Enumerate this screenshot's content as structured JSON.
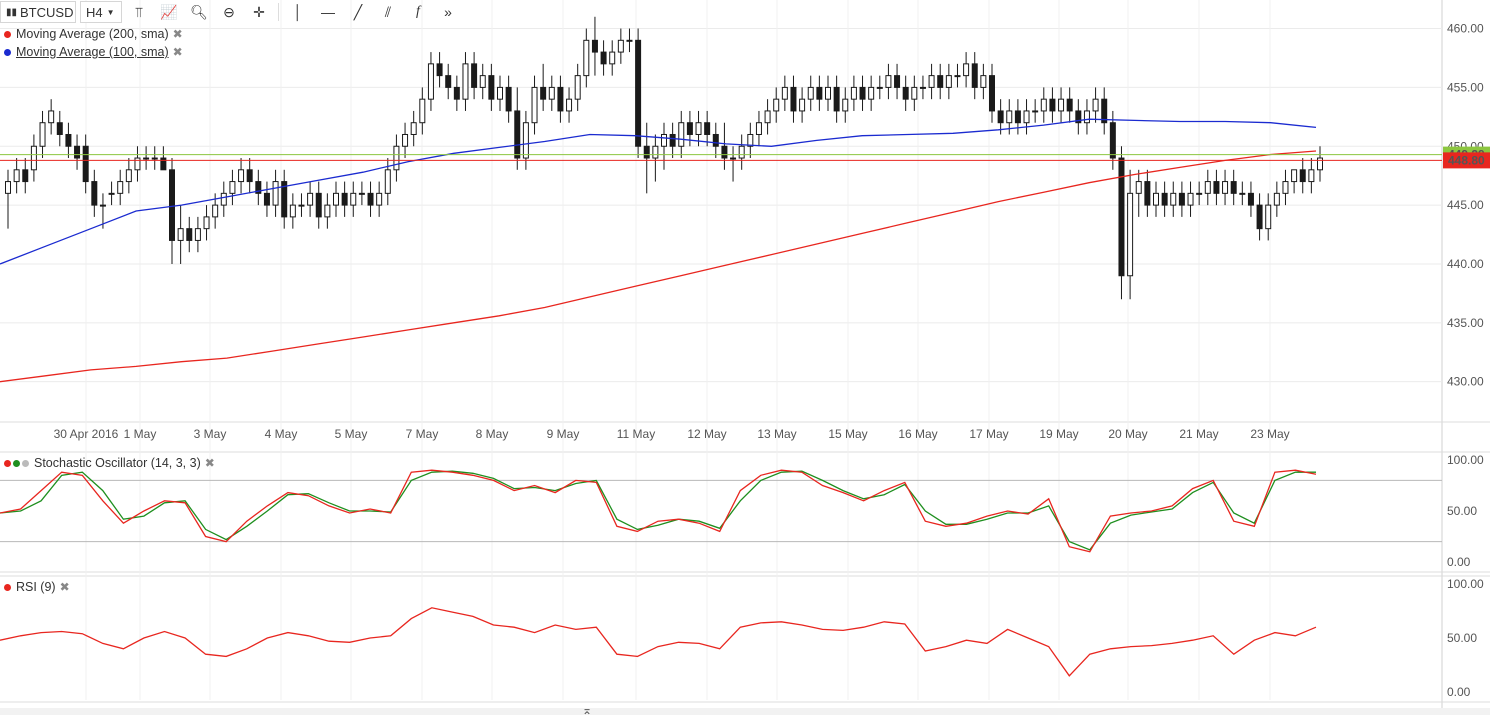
{
  "toolbar": {
    "symbol": "BTCUSD",
    "interval": "H4",
    "icons": [
      "bar-type-icon",
      "indicator-icon",
      "zoom-in-icon",
      "zoom-out-icon",
      "crosshair-icon",
      "vertical-line-icon",
      "horizontal-line-icon",
      "trend-line-icon",
      "fibonacci-icon",
      "function-icon",
      "forward-icon"
    ]
  },
  "legend": {
    "ma200": "Moving Average (200, sma)",
    "ma100": "Moving Average (100, sma)",
    "stoch": "Stochastic Oscillator (14, 3, 3)",
    "rsi": "RSI (9)"
  },
  "colors": {
    "ma200": "#e8261f",
    "ma100": "#1b2bd0",
    "stoch_k": "#e8261f",
    "stoch_d": "#1f8f1f",
    "rsi": "#e8261f",
    "price_line_green": "#8cc63f",
    "price_line_red": "#e8261f",
    "candle": "#1a1a1a",
    "grid": "#ebebeb"
  },
  "chart_data": [
    {
      "type": "candlestick",
      "title": "BTCUSD",
      "ylim": [
        427,
        462
      ],
      "yticks": [
        "460.00",
        "455.00",
        "450.00",
        "445.00",
        "440.00",
        "435.00",
        "430.00"
      ],
      "xticks": [
        "30 Apr 2016",
        "1 May",
        "3 May",
        "4 May",
        "5 May",
        "7 May",
        "8 May",
        "9 May",
        "11 May",
        "12 May",
        "13 May",
        "15 May",
        "16 May",
        "17 May",
        "19 May",
        "20 May",
        "21 May",
        "23 May"
      ],
      "price_markers": [
        {
          "label": "449.29",
          "value": 449.29,
          "color": "#8cc63f"
        },
        {
          "label": "448.80",
          "value": 448.8,
          "color": "#e8261f"
        }
      ],
      "candles": [
        [
          446,
          448,
          443,
          447
        ],
        [
          447,
          449,
          446,
          448
        ],
        [
          448,
          449,
          446,
          447
        ],
        [
          448,
          451,
          447,
          450
        ],
        [
          450,
          453,
          449,
          452
        ],
        [
          452,
          454,
          451,
          453
        ],
        [
          452,
          453,
          450,
          451
        ],
        [
          451,
          452,
          449,
          450
        ],
        [
          450,
          451,
          448,
          449
        ],
        [
          450,
          451,
          446,
          447
        ],
        [
          447,
          448,
          444,
          445
        ],
        [
          445,
          446,
          443,
          445
        ],
        [
          446,
          447,
          445,
          446
        ],
        [
          446,
          448,
          445,
          447
        ],
        [
          447,
          449,
          446,
          448
        ],
        [
          448,
          450,
          447,
          449
        ],
        [
          449,
          450,
          448,
          449
        ],
        [
          449,
          450,
          448,
          449
        ],
        [
          449,
          450,
          448,
          448
        ],
        [
          448,
          449,
          440,
          442
        ],
        [
          442,
          445,
          440,
          443
        ],
        [
          443,
          444,
          441,
          442
        ],
        [
          442,
          444,
          441,
          443
        ],
        [
          443,
          445,
          442,
          444
        ],
        [
          444,
          446,
          443,
          445
        ],
        [
          445,
          447,
          444,
          446
        ],
        [
          446,
          448,
          445,
          447
        ],
        [
          447,
          449,
          446,
          448
        ],
        [
          448,
          449,
          446,
          447
        ],
        [
          447,
          448,
          445,
          446
        ],
        [
          446,
          447,
          444,
          445
        ],
        [
          445,
          448,
          444,
          447
        ],
        [
          447,
          448,
          443,
          444
        ],
        [
          444,
          446,
          443,
          445
        ],
        [
          445,
          446,
          444,
          445
        ],
        [
          445,
          447,
          444,
          446
        ],
        [
          446,
          447,
          443,
          444
        ],
        [
          444,
          446,
          443,
          445
        ],
        [
          445,
          447,
          444,
          446
        ],
        [
          446,
          447,
          444,
          445
        ],
        [
          445,
          447,
          444,
          446
        ],
        [
          446,
          447,
          445,
          446
        ],
        [
          446,
          447,
          444,
          445
        ],
        [
          445,
          447,
          444,
          446
        ],
        [
          446,
          449,
          445,
          448
        ],
        [
          448,
          451,
          447,
          450
        ],
        [
          450,
          452,
          449,
          451
        ],
        [
          451,
          453,
          450,
          452
        ],
        [
          452,
          455,
          451,
          454
        ],
        [
          454,
          458,
          453,
          457
        ],
        [
          457,
          458,
          455,
          456
        ],
        [
          456,
          457,
          454,
          455
        ],
        [
          455,
          456,
          453,
          454
        ],
        [
          454,
          458,
          453,
          457
        ],
        [
          457,
          458,
          454,
          455
        ],
        [
          455,
          457,
          454,
          456
        ],
        [
          456,
          457,
          453,
          454
        ],
        [
          454,
          456,
          453,
          455
        ],
        [
          455,
          456,
          452,
          453
        ],
        [
          453,
          455,
          448,
          449
        ],
        [
          449,
          453,
          448,
          452
        ],
        [
          452,
          456,
          451,
          455
        ],
        [
          455,
          457,
          453,
          454
        ],
        [
          454,
          456,
          453,
          455
        ],
        [
          455,
          456,
          452,
          453
        ],
        [
          453,
          455,
          452,
          454
        ],
        [
          454,
          457,
          453,
          456
        ],
        [
          456,
          460,
          455,
          459
        ],
        [
          459,
          461,
          456,
          458
        ],
        [
          458,
          459,
          456,
          457
        ],
        [
          457,
          459,
          456,
          458
        ],
        [
          458,
          460,
          457,
          459
        ],
        [
          459,
          460,
          458,
          459
        ],
        [
          459,
          460,
          449,
          450
        ],
        [
          450,
          452,
          446,
          449
        ],
        [
          449,
          451,
          447,
          450
        ],
        [
          450,
          452,
          448,
          451
        ],
        [
          451,
          452,
          449,
          450
        ],
        [
          450,
          453,
          449,
          452
        ],
        [
          452,
          453,
          450,
          451
        ],
        [
          451,
          453,
          450,
          452
        ],
        [
          452,
          453,
          450,
          451
        ],
        [
          451,
          452,
          449,
          450
        ],
        [
          450,
          452,
          448,
          449
        ],
        [
          449,
          450,
          447,
          449
        ],
        [
          449,
          451,
          448,
          450
        ],
        [
          450,
          452,
          449,
          451
        ],
        [
          451,
          453,
          450,
          452
        ],
        [
          452,
          454,
          451,
          453
        ],
        [
          453,
          455,
          452,
          454
        ],
        [
          454,
          456,
          453,
          455
        ],
        [
          455,
          456,
          452,
          453
        ],
        [
          453,
          455,
          452,
          454
        ],
        [
          454,
          456,
          453,
          455
        ],
        [
          455,
          456,
          453,
          454
        ],
        [
          454,
          456,
          453,
          455
        ],
        [
          455,
          456,
          452,
          453
        ],
        [
          453,
          455,
          452,
          454
        ],
        [
          454,
          456,
          453,
          455
        ],
        [
          455,
          456,
          453,
          454
        ],
        [
          454,
          456,
          453,
          455
        ],
        [
          455,
          456,
          454,
          455
        ],
        [
          455,
          457,
          454,
          456
        ],
        [
          456,
          457,
          454,
          455
        ],
        [
          455,
          456,
          453,
          454
        ],
        [
          454,
          456,
          453,
          455
        ],
        [
          455,
          456,
          454,
          455
        ],
        [
          455,
          457,
          454,
          456
        ],
        [
          456,
          457,
          454,
          455
        ],
        [
          455,
          457,
          454,
          456
        ],
        [
          456,
          457,
          455,
          456
        ],
        [
          456,
          458,
          455,
          457
        ],
        [
          457,
          458,
          454,
          455
        ],
        [
          455,
          457,
          454,
          456
        ],
        [
          456,
          457,
          452,
          453
        ],
        [
          453,
          454,
          451,
          452
        ],
        [
          452,
          454,
          451,
          453
        ],
        [
          453,
          454,
          451,
          452
        ],
        [
          452,
          454,
          451,
          453
        ],
        [
          453,
          454,
          452,
          453
        ],
        [
          453,
          455,
          452,
          454
        ],
        [
          454,
          455,
          452,
          453
        ],
        [
          453,
          455,
          452,
          454
        ],
        [
          454,
          455,
          452,
          453
        ],
        [
          453,
          454,
          451,
          452
        ],
        [
          452,
          454,
          451,
          453
        ],
        [
          453,
          455,
          452,
          454
        ],
        [
          454,
          455,
          451,
          452
        ],
        [
          452,
          453,
          448,
          449
        ],
        [
          449,
          450,
          437,
          439
        ],
        [
          439,
          448,
          437,
          446
        ],
        [
          446,
          448,
          444,
          447
        ],
        [
          447,
          448,
          444,
          445
        ],
        [
          445,
          447,
          444,
          446
        ],
        [
          446,
          447,
          444,
          445
        ],
        [
          445,
          447,
          444,
          446
        ],
        [
          446,
          447,
          444,
          445
        ],
        [
          445,
          447,
          444,
          446
        ],
        [
          446,
          447,
          445,
          446
        ],
        [
          446,
          448,
          445,
          447
        ],
        [
          447,
          448,
          445,
          446
        ],
        [
          446,
          448,
          445,
          447
        ],
        [
          447,
          448,
          445,
          446
        ],
        [
          446,
          447,
          445,
          446
        ],
        [
          446,
          447,
          444,
          445
        ],
        [
          445,
          446,
          442,
          443
        ],
        [
          443,
          446,
          442,
          445
        ],
        [
          445,
          447,
          444,
          446
        ],
        [
          446,
          448,
          445,
          447
        ],
        [
          447,
          448,
          446,
          448
        ],
        [
          448,
          449,
          446,
          447
        ],
        [
          447,
          449,
          446,
          448
        ],
        [
          448,
          450,
          447,
          449
        ]
      ],
      "series": [
        {
          "name": "Moving Average (200, sma)",
          "values": [
            430,
            430.5,
            431,
            431.3,
            431.7,
            432,
            432.6,
            433.2,
            433.8,
            434.4,
            435,
            435.6,
            436.3,
            437.2,
            438.1,
            439,
            439.9,
            440.8,
            441.7,
            442.6,
            443.5,
            444.4,
            445.3,
            446.1,
            446.9,
            447.6,
            448.2,
            448.8,
            449.3,
            449.6
          ]
        },
        {
          "name": "Moving Average (100, sma)",
          "values": [
            440,
            441.5,
            443,
            444.5,
            445,
            445.7,
            446.4,
            447.1,
            447.8,
            448.7,
            449.4,
            449.9,
            450.4,
            451,
            450.9,
            450.6,
            450.2,
            450,
            450.5,
            450.9,
            451,
            451.1,
            451.4,
            451.8,
            452.3,
            452.2,
            452.1,
            452.1,
            452,
            451.6
          ]
        }
      ]
    },
    {
      "type": "line",
      "title": "Stochastic Oscillator (14, 3, 3)",
      "ylim": [
        0,
        100
      ],
      "yticks": [
        "100.00",
        "50.00",
        "0.00"
      ],
      "series": [
        {
          "name": "%K",
          "values": [
            48,
            52,
            70,
            88,
            85,
            60,
            38,
            50,
            60,
            58,
            25,
            20,
            40,
            55,
            68,
            65,
            55,
            48,
            52,
            48,
            88,
            90,
            88,
            85,
            80,
            70,
            75,
            68,
            80,
            78,
            35,
            30,
            40,
            42,
            38,
            30,
            70,
            85,
            90,
            88,
            75,
            68,
            60,
            70,
            78,
            40,
            35,
            38,
            45,
            50,
            47,
            62,
            15,
            10,
            45,
            48,
            50,
            55,
            72,
            80,
            40,
            35,
            88,
            90,
            86
          ]
        },
        {
          "name": "%D",
          "values": [
            48,
            50,
            60,
            85,
            88,
            70,
            42,
            45,
            58,
            60,
            32,
            22,
            35,
            50,
            66,
            67,
            58,
            50,
            50,
            49,
            80,
            88,
            89,
            87,
            82,
            72,
            73,
            70,
            77,
            80,
            42,
            32,
            36,
            42,
            40,
            33,
            60,
            80,
            88,
            89,
            80,
            70,
            62,
            66,
            76,
            50,
            37,
            37,
            42,
            48,
            48,
            55,
            20,
            12,
            38,
            46,
            49,
            52,
            68,
            78,
            48,
            38,
            80,
            88,
            88
          ]
        }
      ]
    },
    {
      "type": "line",
      "title": "RSI (9)",
      "ylim": [
        0,
        100
      ],
      "yticks": [
        "100.00",
        "50.00",
        "0.00"
      ],
      "series": [
        {
          "name": "RSI (9)",
          "values": [
            48,
            52,
            55,
            56,
            54,
            45,
            40,
            50,
            56,
            50,
            35,
            33,
            40,
            50,
            55,
            52,
            47,
            46,
            50,
            52,
            68,
            78,
            74,
            70,
            62,
            60,
            55,
            62,
            58,
            60,
            35,
            33,
            42,
            46,
            45,
            40,
            60,
            64,
            65,
            62,
            58,
            57,
            60,
            65,
            63,
            38,
            42,
            48,
            45,
            58,
            50,
            42,
            15,
            35,
            40,
            42,
            43,
            45,
            48,
            52,
            35,
            48,
            55,
            52,
            60
          ]
        }
      ]
    }
  ]
}
